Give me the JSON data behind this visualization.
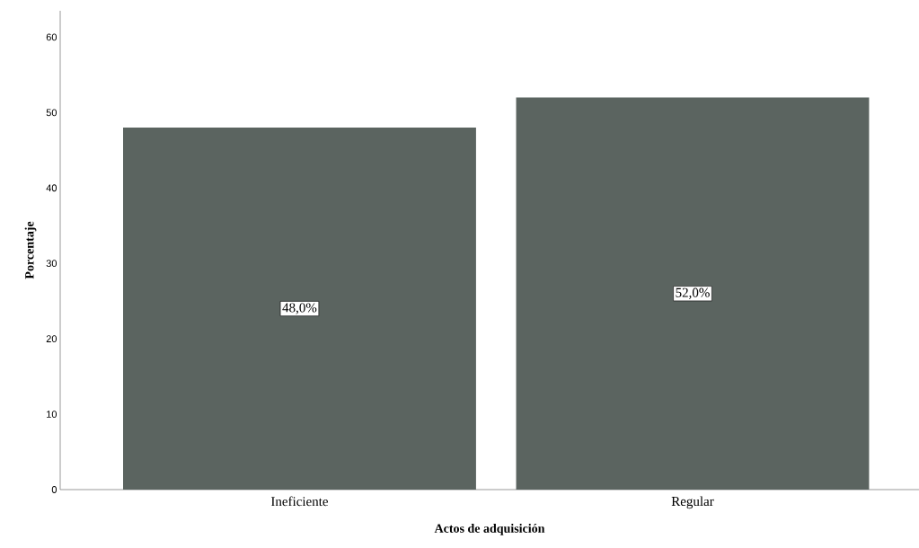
{
  "chart_data": {
    "type": "bar",
    "xlabel": "Actos de adquisición",
    "ylabel": "Porcentaje",
    "categories": [
      "Ineficiente",
      "Regular"
    ],
    "values": [
      48.0,
      52.0
    ],
    "value_labels": [
      "48,0%",
      "52,0%"
    ],
    "color": "#5b6460",
    "ylim": [
      0,
      63.5
    ],
    "yticks": [
      0,
      10,
      20,
      30,
      40,
      50,
      60
    ],
    "grid": false
  }
}
